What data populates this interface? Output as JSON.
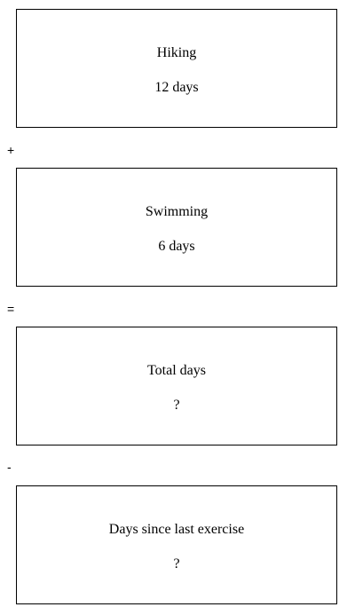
{
  "cards": [
    {
      "label": "Hiking",
      "value": "12 days"
    },
    {
      "label": "Swimming",
      "value": "6 days"
    },
    {
      "label": "Total days",
      "value": "?"
    },
    {
      "label": "Days since last exercise",
      "value": "?"
    }
  ],
  "operators": [
    "+",
    "=",
    "-"
  ]
}
